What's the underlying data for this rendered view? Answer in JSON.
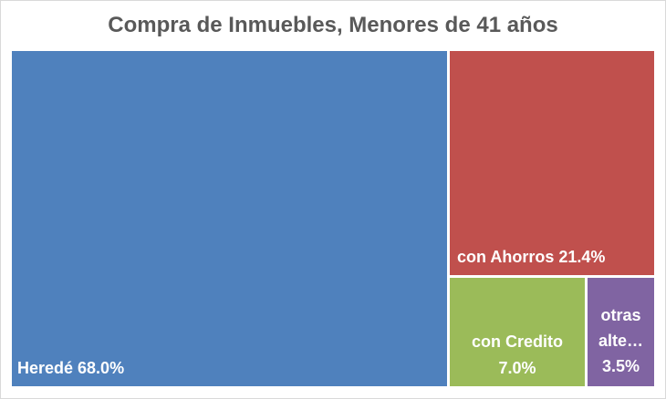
{
  "chart_data": {
    "type": "treemap",
    "title": "Compra de Inmuebles, Menores de 41 años",
    "items": [
      {
        "name": "Heredé",
        "label": "Heredé 68.0%",
        "value": 68.0,
        "color": "#4f81bd"
      },
      {
        "name": "con Ahorros",
        "label": "con Ahorros 21.4%",
        "value": 21.4,
        "color": "#c0504d"
      },
      {
        "name": "con Credito",
        "label_lines": [
          "con Credito",
          "7.0%"
        ],
        "value": 7.0,
        "color": "#9bbb59"
      },
      {
        "name": "otras alternativas",
        "label_lines": [
          "otras",
          "alte…",
          "3.5%"
        ],
        "value": 3.5,
        "color": "#8064a2"
      }
    ]
  }
}
